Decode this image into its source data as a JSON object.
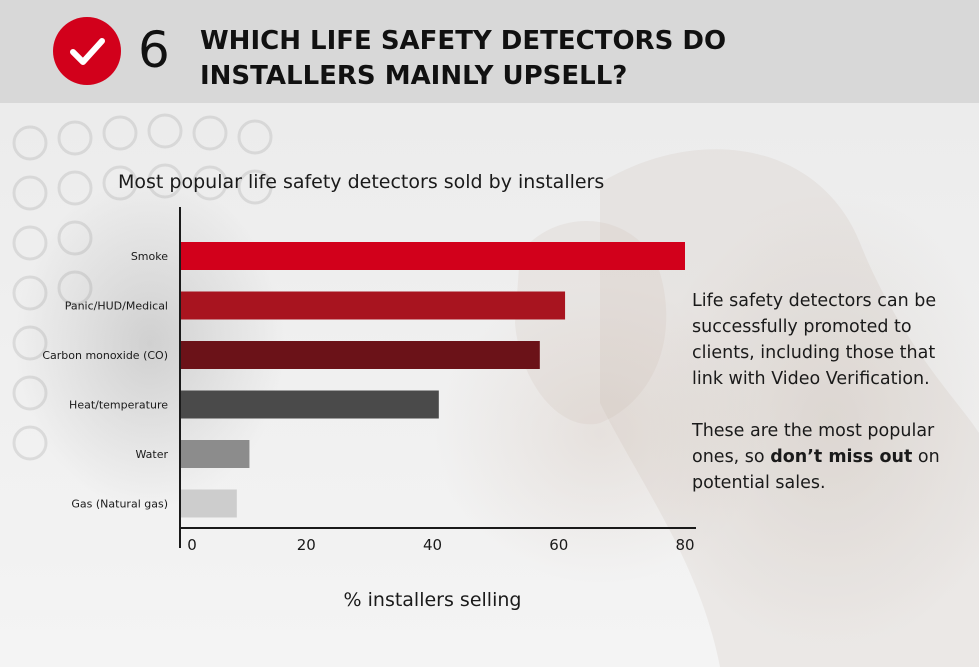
{
  "header": {
    "number": "6",
    "title": "WHICH LIFE SAFETY DETECTORS DO INSTALLERS MAINLY UPSELL?",
    "accent_color": "#d2001b",
    "icon": "checkmark-icon"
  },
  "side_text": {
    "paragraph1": "Life safety detectors can be successfully promoted to clients, including those that link with Video Verification.",
    "paragraph2_before": "These are the most popular ones, so ",
    "paragraph2_bold": "don’t miss out",
    "paragraph2_after": " on potential sales."
  },
  "chart_data": {
    "type": "bar",
    "orientation": "horizontal",
    "title": "Most popular life safety detectors sold by installers",
    "xlabel": "% installers selling",
    "ylabel": "",
    "categories": [
      "Smoke",
      "Panic/HUD/Medical",
      "Carbon monoxide (CO)",
      "Heat/temperature",
      "Water",
      "Gas (Natural gas)"
    ],
    "values": [
      80,
      61,
      57,
      41,
      11,
      9
    ],
    "colors": [
      "#d2001b",
      "#a8141f",
      "#6b1218",
      "#4a4a4a",
      "#8c8c8c",
      "#cdcdcd"
    ],
    "xlim": [
      0,
      80
    ],
    "xticks": [
      0,
      20,
      40,
      60,
      80
    ],
    "grid": false
  }
}
